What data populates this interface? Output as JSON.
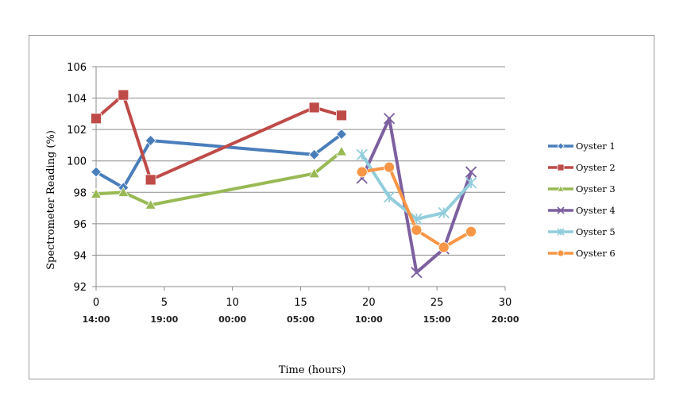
{
  "chart_data": {
    "type": "line",
    "xlabel": "Time (hours)",
    "ylabel": "Spectrometer Reading (%)",
    "xlim": [
      0,
      30
    ],
    "ylim": [
      92,
      106
    ],
    "x_ticks": [
      0,
      5,
      10,
      15,
      20,
      25,
      30
    ],
    "y_ticks": [
      92,
      94,
      96,
      98,
      100,
      102,
      104,
      106
    ],
    "secondary_x_labels": [
      {
        "x": 0,
        "label": "14:00"
      },
      {
        "x": 5,
        "label": "19:00"
      },
      {
        "x": 10,
        "label": "00:00"
      },
      {
        "x": 15,
        "label": "05:00"
      },
      {
        "x": 20,
        "label": "10:00"
      },
      {
        "x": 25,
        "label": "15:00"
      },
      {
        "x": 30,
        "label": "20:00"
      }
    ],
    "grid": "horizontal",
    "legend_position": "right",
    "series": [
      {
        "name": "Oyster 1",
        "color": "#4a7ebb",
        "marker": "diamond",
        "x": [
          0,
          2,
          4,
          16,
          18
        ],
        "y": [
          99.3,
          98.3,
          101.3,
          100.4,
          101.7
        ]
      },
      {
        "name": "Oyster 2",
        "color": "#be4b48",
        "marker": "square",
        "x": [
          0,
          2,
          4,
          16,
          18
        ],
        "y": [
          102.7,
          104.2,
          98.8,
          103.4,
          102.9
        ]
      },
      {
        "name": "Oyster 3",
        "color": "#98b954",
        "marker": "triangle",
        "x": [
          0,
          2,
          4,
          16,
          18
        ],
        "y": [
          97.9,
          98.0,
          97.2,
          99.2,
          100.6
        ]
      },
      {
        "name": "Oyster 4",
        "color": "#7d60a0",
        "marker": "x",
        "x": [
          19.5,
          21.5,
          23.5,
          25.5,
          27.5
        ],
        "y": [
          98.9,
          102.7,
          92.9,
          94.4,
          99.3
        ]
      },
      {
        "name": "Oyster 5",
        "color": "#92cddc",
        "marker": "star",
        "x": [
          19.5,
          21.5,
          23.5,
          25.5,
          27.5
        ],
        "y": [
          100.4,
          97.7,
          96.3,
          96.7,
          98.6
        ]
      },
      {
        "name": "Oyster 6",
        "color": "#f79646",
        "marker": "circle",
        "x": [
          19.5,
          21.5,
          23.5,
          25.5,
          27.5
        ],
        "y": [
          99.3,
          99.6,
          95.6,
          94.5,
          95.5
        ]
      }
    ]
  }
}
